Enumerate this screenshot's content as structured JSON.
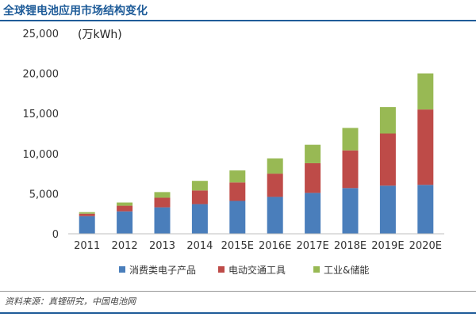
{
  "title": "全球锂电池应用市场结构变化",
  "source": "资料来源：真锂研究，中国电池网",
  "chart_data": {
    "type": "bar",
    "stacked": true,
    "unit": "(万kWh)",
    "categories": [
      "2011",
      "2012",
      "2013",
      "2014",
      "2015E",
      "2016E",
      "2017E",
      "2018E",
      "2019E",
      "2020E"
    ],
    "series": [
      {
        "name": "消费类电子产品",
        "color": "#4a7ebb",
        "values": [
          2200,
          2800,
          3300,
          3700,
          4100,
          4600,
          5100,
          5700,
          6000,
          6100
        ]
      },
      {
        "name": "电动交通工具",
        "color": "#be4b48",
        "values": [
          300,
          700,
          1200,
          1700,
          2300,
          2900,
          3700,
          4700,
          6500,
          9400
        ]
      },
      {
        "name": "工业&储能",
        "color": "#98b954",
        "values": [
          200,
          400,
          700,
          1200,
          1500,
          1900,
          2300,
          2800,
          3300,
          4500
        ]
      }
    ],
    "y_ticks": [
      "0",
      "5,000",
      "10,000",
      "15,000",
      "20,000",
      "25,000"
    ],
    "ylim": [
      0,
      25000
    ],
    "grid": false,
    "legend_position": "bottom"
  }
}
